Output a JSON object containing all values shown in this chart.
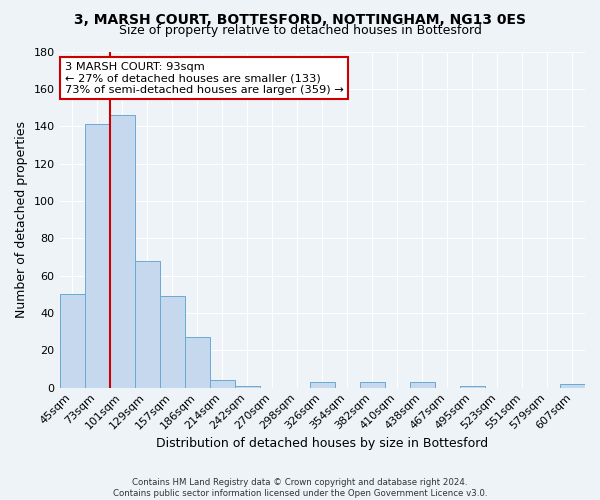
{
  "title": "3, MARSH COURT, BOTTESFORD, NOTTINGHAM, NG13 0ES",
  "subtitle": "Size of property relative to detached houses in Bottesford",
  "xlabel": "Distribution of detached houses by size in Bottesford",
  "ylabel": "Number of detached properties",
  "bar_labels": [
    "45sqm",
    "73sqm",
    "101sqm",
    "129sqm",
    "157sqm",
    "186sqm",
    "214sqm",
    "242sqm",
    "270sqm",
    "298sqm",
    "326sqm",
    "354sqm",
    "382sqm",
    "410sqm",
    "438sqm",
    "467sqm",
    "495sqm",
    "523sqm",
    "551sqm",
    "579sqm",
    "607sqm"
  ],
  "bar_values": [
    50,
    141,
    146,
    68,
    49,
    27,
    4,
    1,
    0,
    0,
    3,
    0,
    3,
    0,
    3,
    0,
    1,
    0,
    0,
    0,
    2
  ],
  "bar_color": "#c5d8ed",
  "bar_edge_color": "#6aaad4",
  "vline_x": 1.5,
  "vline_color": "#cc0000",
  "annotation_text": "3 MARSH COURT: 93sqm\n← 27% of detached houses are smaller (133)\n73% of semi-detached houses are larger (359) →",
  "annotation_box_color": "#ffffff",
  "annotation_box_edge": "#cc0000",
  "ylim": [
    0,
    180
  ],
  "yticks": [
    0,
    20,
    40,
    60,
    80,
    100,
    120,
    140,
    160,
    180
  ],
  "bg_color": "#eef3f8",
  "grid_color": "#ffffff",
  "footer_line1": "Contains HM Land Registry data © Crown copyright and database right 2024.",
  "footer_line2": "Contains public sector information licensed under the Open Government Licence v3.0."
}
